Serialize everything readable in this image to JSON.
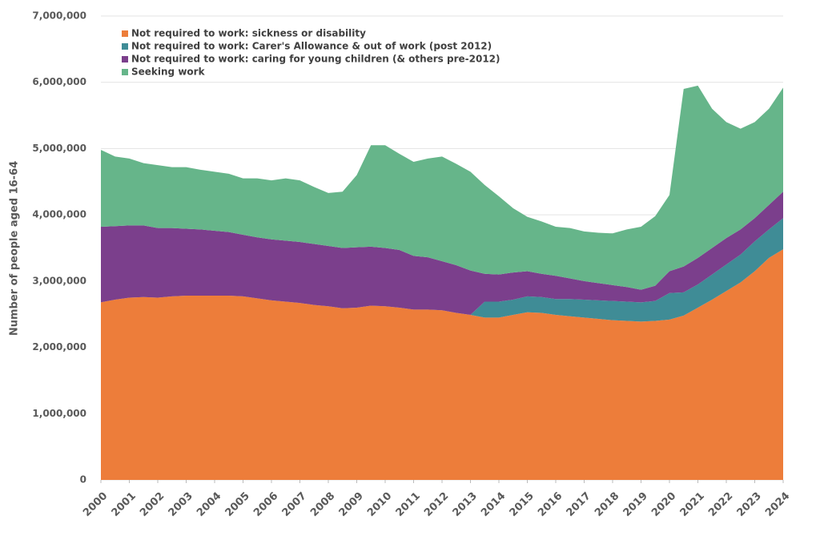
{
  "chart_data": {
    "type": "stacked-area",
    "y_label": "Number of people aged 16-64",
    "x": [
      2000,
      2000.5,
      2001,
      2001.5,
      2002,
      2002.5,
      2003,
      2003.5,
      2004,
      2004.5,
      2005,
      2005.5,
      2006,
      2006.5,
      2007,
      2007.5,
      2008,
      2008.5,
      2009,
      2009.5,
      2010,
      2010.5,
      2011,
      2011.5,
      2012,
      2012.5,
      2013,
      2013.5,
      2014,
      2014.5,
      2015,
      2015.5,
      2016,
      2016.5,
      2017,
      2017.5,
      2018,
      2018.5,
      2019,
      2019.5,
      2020,
      2020.5,
      2021,
      2021.5,
      2022,
      2022.5,
      2023,
      2023.5,
      2024
    ],
    "series": [
      {
        "name": "Not required to work: sickness or disability",
        "color": "#ED7D3A",
        "values": [
          2680000,
          2720000,
          2750000,
          2760000,
          2750000,
          2770000,
          2780000,
          2780000,
          2780000,
          2780000,
          2770000,
          2740000,
          2710000,
          2690000,
          2670000,
          2640000,
          2620000,
          2590000,
          2600000,
          2630000,
          2620000,
          2600000,
          2570000,
          2570000,
          2560000,
          2520000,
          2490000,
          2450000,
          2450000,
          2490000,
          2530000,
          2520000,
          2490000,
          2470000,
          2450000,
          2430000,
          2410000,
          2400000,
          2390000,
          2400000,
          2420000,
          2480000,
          2600000,
          2720000,
          2850000,
          2980000,
          3150000,
          3350000,
          3480000
        ]
      },
      {
        "name": "Not required to work: Carer's Allowance & out of work (post 2012)",
        "color": "#3F8C96",
        "values": [
          0,
          0,
          0,
          0,
          0,
          0,
          0,
          0,
          0,
          0,
          0,
          0,
          0,
          0,
          0,
          0,
          0,
          0,
          0,
          0,
          0,
          0,
          0,
          0,
          0,
          0,
          0,
          240000,
          240000,
          230000,
          240000,
          240000,
          240000,
          260000,
          270000,
          280000,
          290000,
          290000,
          290000,
          300000,
          400000,
          350000,
          350000,
          380000,
          400000,
          420000,
          450000,
          430000,
          470000
        ]
      },
      {
        "name": "Not required to work: caring for young children (& others pre-2012)",
        "color": "#7B3F8C",
        "values": [
          1140000,
          1110000,
          1090000,
          1080000,
          1050000,
          1030000,
          1010000,
          1000000,
          980000,
          960000,
          930000,
          920000,
          920000,
          920000,
          920000,
          920000,
          910000,
          910000,
          910000,
          890000,
          880000,
          870000,
          810000,
          790000,
          740000,
          720000,
          670000,
          420000,
          410000,
          410000,
          380000,
          350000,
          350000,
          310000,
          280000,
          260000,
          240000,
          220000,
          190000,
          230000,
          330000,
          390000,
          400000,
          400000,
          400000,
          380000,
          350000,
          370000,
          400000
        ]
      },
      {
        "name": "Seeking work",
        "color": "#66B58A",
        "values": [
          1160000,
          1050000,
          1010000,
          940000,
          950000,
          920000,
          930000,
          900000,
          890000,
          880000,
          850000,
          890000,
          890000,
          940000,
          930000,
          860000,
          800000,
          850000,
          1090000,
          1530000,
          1550000,
          1450000,
          1420000,
          1490000,
          1580000,
          1530000,
          1490000,
          1340000,
          1180000,
          970000,
          820000,
          790000,
          740000,
          760000,
          750000,
          760000,
          780000,
          870000,
          950000,
          1050000,
          1150000,
          2680000,
          2600000,
          2100000,
          1750000,
          1520000,
          1450000,
          1450000,
          1570000
        ]
      }
    ],
    "xlim": [
      2000,
      2024
    ],
    "xticks": [
      2000,
      2001,
      2002,
      2003,
      2004,
      2005,
      2006,
      2007,
      2008,
      2009,
      2010,
      2011,
      2012,
      2013,
      2014,
      2015,
      2016,
      2017,
      2018,
      2019,
      2020,
      2021,
      2022,
      2023,
      2024
    ],
    "ylim": [
      0,
      7000000
    ],
    "yticks": [
      0,
      {
        "value": 1000000,
        "label": "1,000,000"
      },
      {
        "value": 2000000,
        "label": "2,000,000"
      },
      {
        "value": 3000000,
        "label": "3,000,000"
      },
      {
        "value": 4000000,
        "label": "4,000,000"
      },
      {
        "value": 5000000,
        "label": "5,000,000"
      },
      {
        "value": 6000000,
        "label": "6,000,000"
      },
      {
        "value": 7000000,
        "label": "7,000,000"
      }
    ],
    "grid": true,
    "legend": "top-left"
  }
}
